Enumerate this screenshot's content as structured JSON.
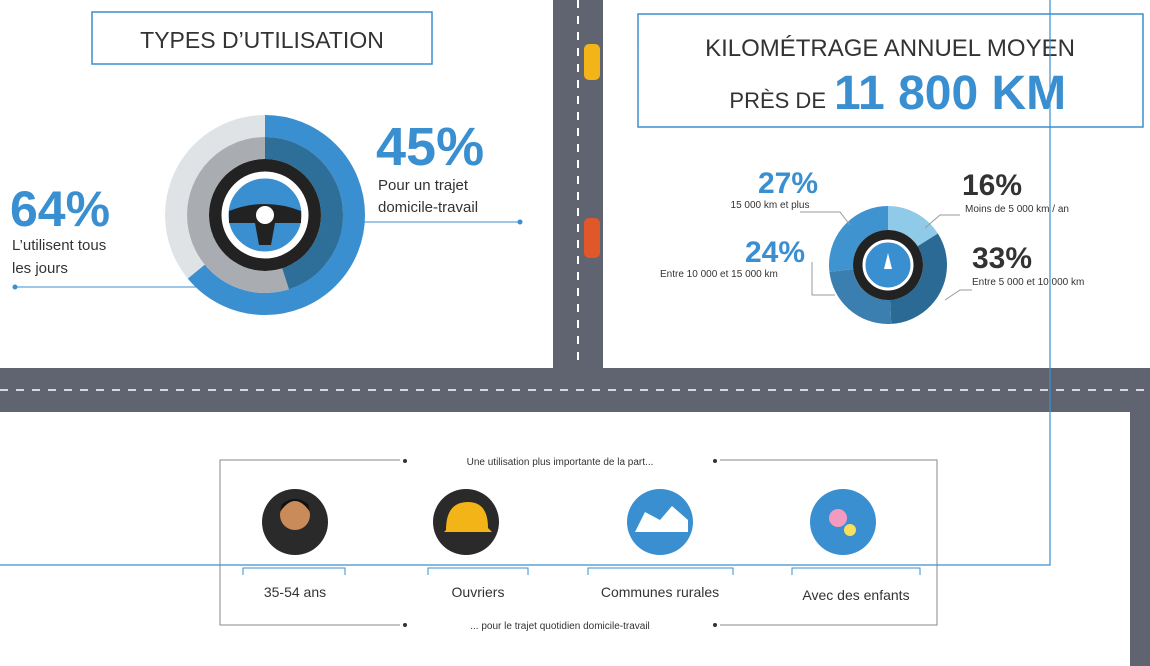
{
  "left": {
    "title": "TYPES D’UTILISATION",
    "stats": [
      {
        "value": "64%",
        "lines": [
          "L’utilisent tous",
          "les jours"
        ]
      },
      {
        "value": "45%",
        "lines": [
          "Pour un trajet",
          "domicile-travail"
        ]
      }
    ]
  },
  "right": {
    "title": "KILOMÉTRAGE ANNUEL MOYEN",
    "prefix": "PRÈS DE",
    "highlight": "11 800 KM",
    "segments": [
      {
        "value": "16%",
        "label": "Moins de 5 000 km / an"
      },
      {
        "value": "33%",
        "label": "Entre 5 000 et 10 000 km"
      },
      {
        "value": "24%",
        "label": "Entre 10 000 et 15 000 km"
      },
      {
        "value": "27%",
        "label": "15 000 km et plus"
      }
    ]
  },
  "bottom": {
    "top_text": "Une utilisation plus importante de la part...",
    "bottom_text": "... pour le trajet quotidien domicile-travail",
    "groups": [
      "35-54 ans",
      "Ouvriers",
      "Communes rurales",
      "Avec des enfants"
    ]
  }
}
